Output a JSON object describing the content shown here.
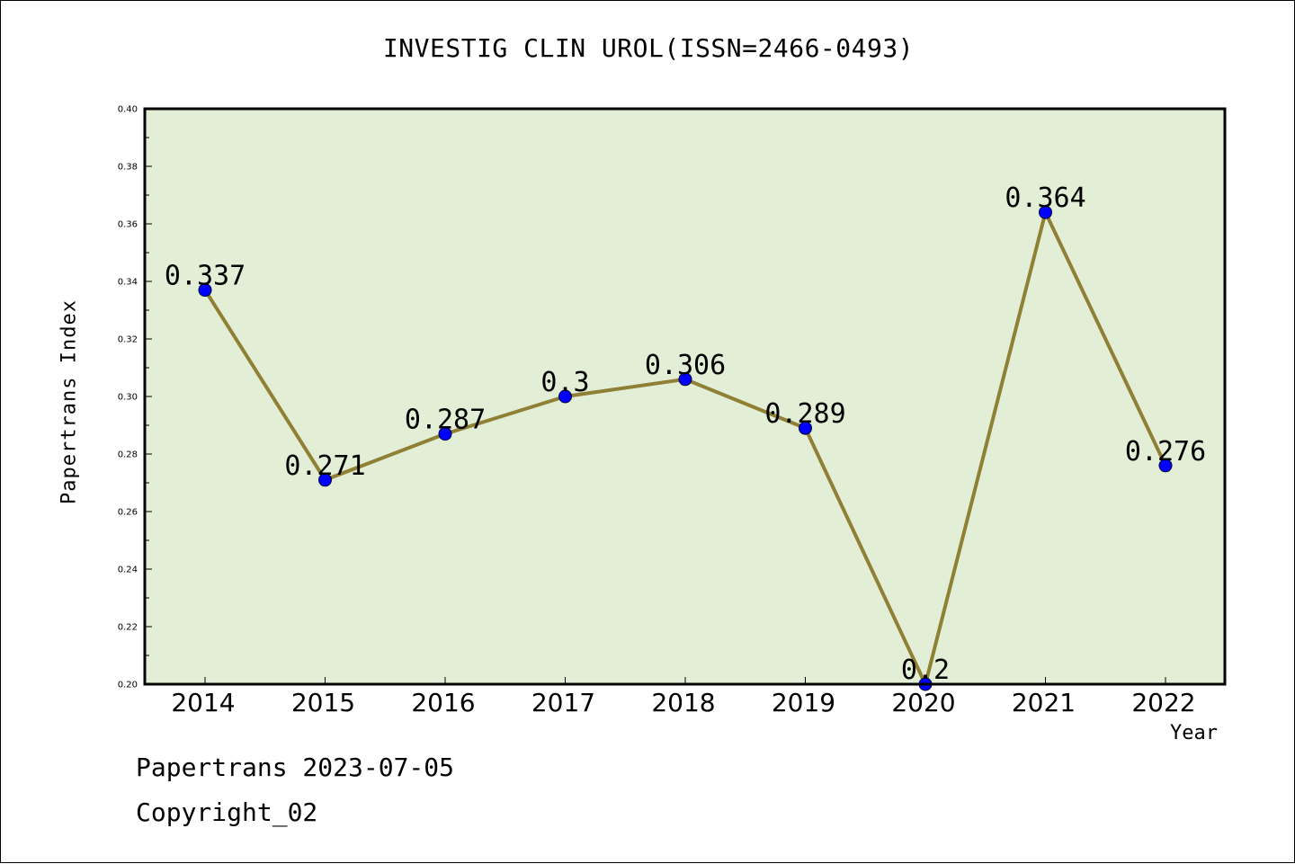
{
  "chart_data": {
    "type": "line",
    "title": "INVESTIG CLIN UROL(ISSN=2466-0493)",
    "xlabel": "Year",
    "ylabel": "Papertrans Index",
    "categories": [
      "2014",
      "2015",
      "2016",
      "2017",
      "2018",
      "2019",
      "2020",
      "2021",
      "2022"
    ],
    "series": [
      {
        "values": [
          0.337,
          0.271,
          0.287,
          0.3,
          0.306,
          0.289,
          0.2,
          0.364,
          0.276
        ],
        "labels": [
          "0.337",
          "0.271",
          "0.287",
          "0.3",
          "0.306",
          "0.289",
          "0.2",
          "0.364",
          "0.276"
        ]
      }
    ],
    "ylim": [
      0.2,
      0.4
    ],
    "yticks": [
      "0.20",
      "0.22",
      "0.24",
      "0.26",
      "0.28",
      "0.30",
      "0.32",
      "0.34",
      "0.36",
      "0.38",
      "0.40"
    ],
    "grid": false,
    "colors": {
      "plot_background": "#e2efd6",
      "line": "#8f8035",
      "marker": "#0000ff",
      "axes": "#000000"
    }
  },
  "footer": {
    "date_line": "Papertrans 2023-07-05",
    "copyright": "Copyright_02"
  }
}
